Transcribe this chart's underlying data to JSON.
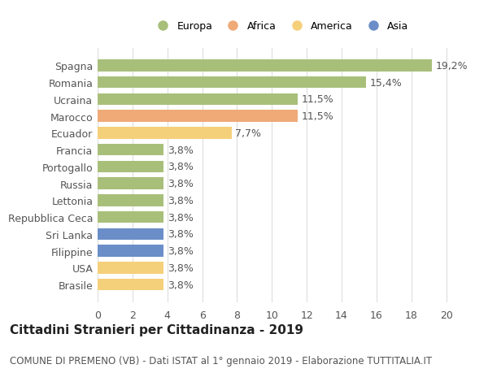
{
  "categories": [
    "Brasile",
    "USA",
    "Filippine",
    "Sri Lanka",
    "Repubblica Ceca",
    "Lettonia",
    "Russia",
    "Portogallo",
    "Francia",
    "Ecuador",
    "Marocco",
    "Ucraina",
    "Romania",
    "Spagna"
  ],
  "values": [
    3.8,
    3.8,
    3.8,
    3.8,
    3.8,
    3.8,
    3.8,
    3.8,
    3.8,
    7.7,
    11.5,
    11.5,
    15.4,
    19.2
  ],
  "colors": [
    "#f5d07a",
    "#f5d07a",
    "#6b8ec8",
    "#6b8ec8",
    "#a8bf7a",
    "#a8bf7a",
    "#a8bf7a",
    "#a8bf7a",
    "#a8bf7a",
    "#f5d07a",
    "#efaa78",
    "#a8bf7a",
    "#a8bf7a",
    "#a8bf7a"
  ],
  "labels": [
    "3,8%",
    "3,8%",
    "3,8%",
    "3,8%",
    "3,8%",
    "3,8%",
    "3,8%",
    "3,8%",
    "3,8%",
    "7,7%",
    "11,5%",
    "11,5%",
    "15,4%",
    "19,2%"
  ],
  "legend_labels": [
    "Europa",
    "Africa",
    "America",
    "Asia"
  ],
  "legend_colors": [
    "#a8bf7a",
    "#efaa78",
    "#f5d07a",
    "#6b8ec8"
  ],
  "title": "Cittadini Stranieri per Cittadinanza - 2019",
  "subtitle": "COMUNE DI PREMENO (VB) - Dati ISTAT al 1° gennaio 2019 - Elaborazione TUTTITALIA.IT",
  "xlim": [
    0,
    21
  ],
  "xticks": [
    0,
    2,
    4,
    6,
    8,
    10,
    12,
    14,
    16,
    18,
    20
  ],
  "background_color": "#ffffff",
  "bar_height": 0.7,
  "grid_color": "#dddddd",
  "label_fontsize": 9,
  "tick_fontsize": 9,
  "title_fontsize": 11,
  "subtitle_fontsize": 8.5
}
